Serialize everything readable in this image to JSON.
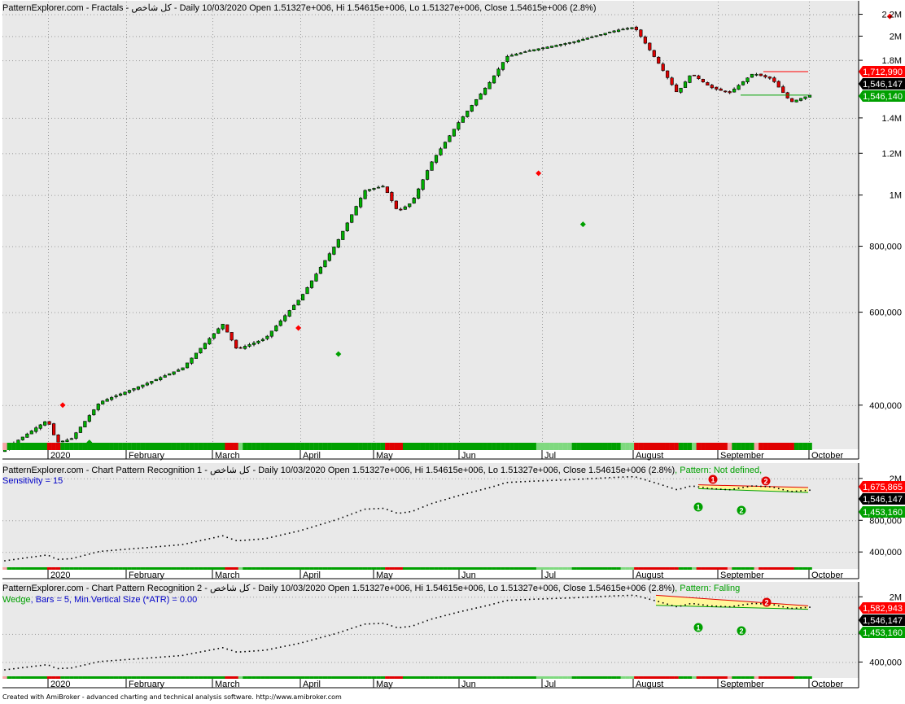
{
  "panes": [
    {
      "title": "PatternExplorer.com - Fractals - كل شاخص - Daily 10/03/2020 Open 1.51327e+006, Hi 1.54615e+006, Lo 1.51327e+006, Close 1.54615e+006 (2.8%)",
      "extra_green": "",
      "extra_blue": "",
      "price_tags": [
        {
          "text": "1,712,990",
          "color": "#ff0000"
        },
        {
          "text": "1,546,147",
          "color": "#000000"
        },
        {
          "text": "1,546,140",
          "color": "#00a000"
        }
      ]
    },
    {
      "title": "PatternExplorer.com - Chart Pattern Recognition 1 - كل شاخص - Daily 10/03/2020 Open 1.51327e+006, Hi 1.54615e+006, Lo 1.51327e+006, Close 1.54615e+006 (2.8%)",
      "extra_green": ", Pattern: Not defined,",
      "extra_blue": "Sensitivity = 15",
      "price_tags": [
        {
          "text": "1,675,865",
          "color": "#ff0000"
        },
        {
          "text": "1,546,147",
          "color": "#000000"
        },
        {
          "text": "1,453,160",
          "color": "#00a000"
        }
      ]
    },
    {
      "title": "PatternExplorer.com - Chart Pattern Recognition 2 - كل شاخص - Daily 10/03/2020 Open 1.51327e+006, Hi 1.54615e+006, Lo 1.51327e+006, Close 1.54615e+006 (2.8%)",
      "extra_green": ", Pattern: Falling",
      "extra_green2": "Wedge",
      "extra_blue": ", Bars = 5, Min.Vertical Size (*ATR) = 0.00",
      "price_tags": [
        {
          "text": "1,582,943",
          "color": "#ff0000"
        },
        {
          "text": "1,546,147",
          "color": "#000000"
        },
        {
          "text": "1,453,160",
          "color": "#00a000"
        }
      ]
    }
  ],
  "footer": "Created with AmiBroker - advanced charting and technical analysis software. http://www.amibroker.com",
  "chart_data": [
    {
      "type": "candlestick",
      "scale": "log",
      "y_ticks_main": [
        "2.2M",
        "2M",
        "1.8M",
        "1.4M",
        "1.2M",
        "1M",
        "800,000",
        "600,000",
        "400,000"
      ],
      "y_ticks_small": [
        "2M",
        "800,000",
        "400,000"
      ],
      "x_labels": [
        "2020",
        "February",
        "March",
        "April",
        "May",
        "Jun",
        "Jul",
        "August",
        "September",
        "October"
      ],
      "series": [
        {
          "dates": [
            "2020-01",
            "2020-02",
            "2020-03",
            "2020-04",
            "2020-05",
            "2020-06",
            "2020-07",
            "2020-08",
            "2020-09",
            "2020-10-03"
          ],
          "close": [
            390000,
            430000,
            560000,
            640000,
            1030000,
            950000,
            1870000,
            2050000,
            1600000,
            1546150
          ]
        }
      ],
      "fractal_highs": [
        400000,
        560000,
        1100000,
        2180000,
        1780000
      ],
      "fractal_lows": [
        340000,
        500000,
        880000,
        1560000,
        1500000
      ],
      "last_close": 1546150
    }
  ]
}
